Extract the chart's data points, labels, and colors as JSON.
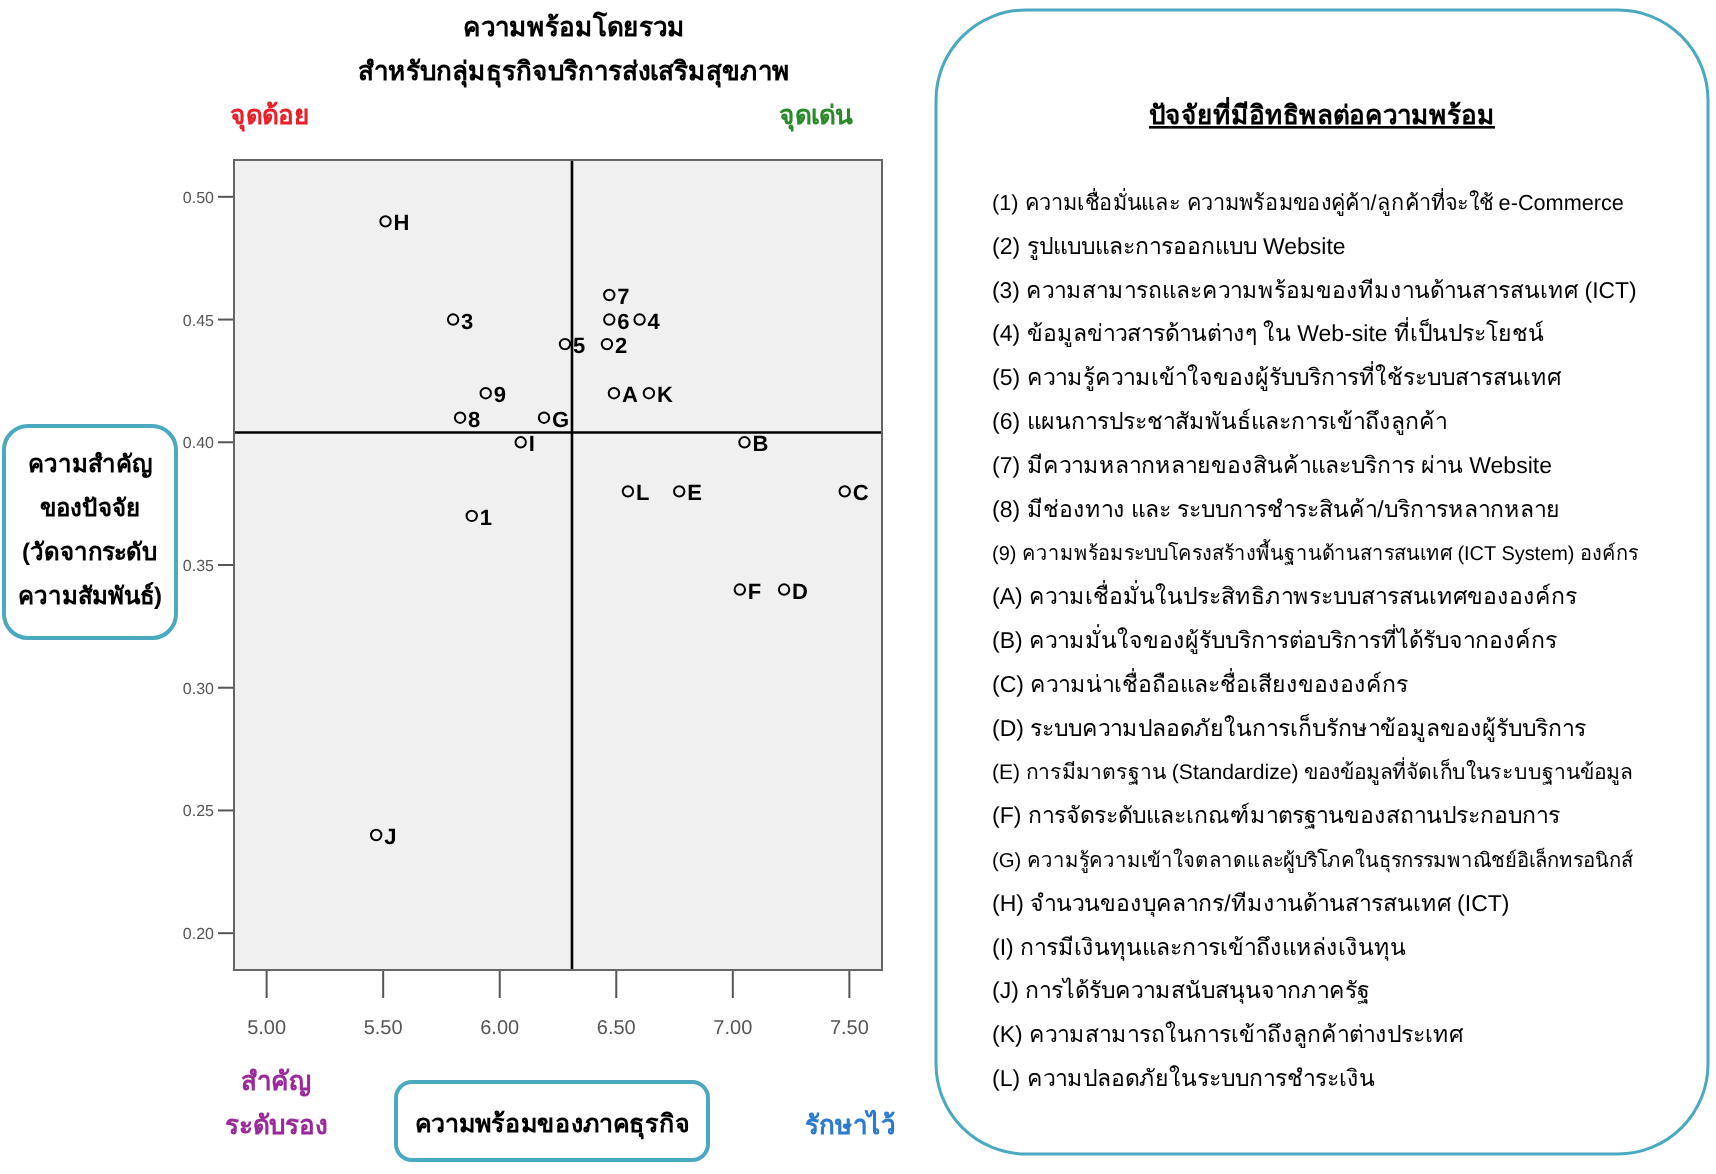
{
  "chart_data": {
    "type": "scatter",
    "title": "ความพร้อมโดยรวม",
    "subtitle": "สำหรับกลุ่มธุรกิจบริการส่งเสริมสุขภาพ",
    "xlabel": "ความพร้อมของภาคธุรกิจ",
    "ylabel": "ความสำคัญ\nของปัจจัย\n(วัดจากระดับ\nความสัมพันธ์)",
    "series": [
      {
        "name": "H",
        "color": "#000000",
        "x": [
          5.51
        ],
        "values": [
          0.49
        ]
      },
      {
        "name": "3",
        "color": "#000000",
        "x": [
          5.8
        ],
        "values": [
          0.45
        ]
      },
      {
        "name": "7",
        "color": "#000000",
        "x": [
          6.47
        ],
        "values": [
          0.46
        ]
      },
      {
        "name": "6",
        "color": "#000000",
        "x": [
          6.47
        ],
        "values": [
          0.45
        ]
      },
      {
        "name": "4",
        "color": "#000000",
        "x": [
          6.6
        ],
        "values": [
          0.45
        ]
      },
      {
        "name": "5",
        "color": "#000000",
        "x": [
          6.28
        ],
        "values": [
          0.44
        ]
      },
      {
        "name": "2",
        "color": "#000000",
        "x": [
          6.46
        ],
        "values": [
          0.44
        ]
      },
      {
        "name": "A",
        "color": "#000000",
        "x": [
          6.49
        ],
        "values": [
          0.42
        ]
      },
      {
        "name": "K",
        "color": "#000000",
        "x": [
          6.64
        ],
        "values": [
          0.42
        ]
      },
      {
        "name": "9",
        "color": "#000000",
        "x": [
          5.94
        ],
        "values": [
          0.42
        ]
      },
      {
        "name": "8",
        "color": "#000000",
        "x": [
          5.83
        ],
        "values": [
          0.41
        ]
      },
      {
        "name": "G",
        "color": "#000000",
        "x": [
          6.19
        ],
        "values": [
          0.41
        ]
      },
      {
        "name": "I",
        "color": "#000000",
        "x": [
          6.09
        ],
        "values": [
          0.4
        ]
      },
      {
        "name": "1",
        "color": "#000000",
        "x": [
          5.88
        ],
        "values": [
          0.37
        ]
      },
      {
        "name": "B",
        "color": "#000000",
        "x": [
          7.05
        ],
        "values": [
          0.4
        ]
      },
      {
        "name": "L",
        "color": "#000000",
        "x": [
          6.55
        ],
        "values": [
          0.38
        ]
      },
      {
        "name": "E",
        "color": "#000000",
        "x": [
          6.77
        ],
        "values": [
          0.38
        ]
      },
      {
        "name": "C",
        "color": "#000000",
        "x": [
          7.48
        ],
        "values": [
          0.38
        ]
      },
      {
        "name": "F",
        "color": "#000000",
        "x": [
          7.03
        ],
        "values": [
          0.34
        ]
      },
      {
        "name": "D",
        "color": "#000000",
        "x": [
          7.22
        ],
        "values": [
          0.34
        ]
      },
      {
        "name": "J",
        "color": "#000000",
        "x": [
          5.47
        ],
        "values": [
          0.24
        ]
      }
    ],
    "xlim": [
      4.86,
      7.64
    ],
    "ylim": [
      0.185,
      0.515
    ],
    "xticks": [
      {
        "value": 5,
        "label": "5.00"
      },
      {
        "value": 5.5,
        "label": "5.50"
      },
      {
        "value": 6,
        "label": "6.00"
      },
      {
        "value": 6.5,
        "label": "6.50"
      },
      {
        "value": 7,
        "label": "7.00"
      },
      {
        "value": 7.5,
        "label": "7.50"
      }
    ],
    "yticks": [
      {
        "value": 0.2,
        "label": "0.20"
      },
      {
        "value": 0.25,
        "label": "0.25"
      },
      {
        "value": 0.3,
        "label": "0.30"
      },
      {
        "value": 0.35,
        "label": "0.35"
      },
      {
        "value": 0.4,
        "label": "0.40"
      },
      {
        "value": 0.45,
        "label": "0.45"
      },
      {
        "value": 0.5,
        "label": "0.50"
      }
    ],
    "ref_lines": [
      {
        "axis": "x",
        "value": 6.31,
        "color": "#000000"
      },
      {
        "axis": "y",
        "value": 0.404,
        "color": "#000000"
      }
    ],
    "marker": "circle",
    "grid": false,
    "annotations": [
      "จุดด้อย",
      "จุดเด่น",
      "สำคัญ\nระดับรอง",
      "รักษาไว้",
      "ปัจจัยที่มีอิทธิพลต่อความพร้อม",
      "(1) ความเชื่อมั่นและ ความพร้อมของคู่ค้า/ลูกค้าที่จะใช้ e-Commerce",
      "(2) รูปแบบและการออกแบบ Website",
      "(3) ความสามารถและความพร้อมของทีมงานด้านสารสนเทศ (ICT)",
      "(4) ข้อมูลข่าวสารด้านต่างๆ ใน Web-site ที่เป็นประโยชน์",
      "(5) ความรู้ความเข้าใจของผู้รับบริการที่ใช้ระบบสารสนเทศ",
      "(6) แผนการประชาสัมพันธ์และการเข้าถึงลูกค้า",
      "(7) มีความหลากหลายของสินค้าและบริการ ผ่าน Website",
      "(8) มีช่องทาง และ ระบบการชำระสินค้า/บริการหลากหลาย",
      "(9) ความพร้อมระบบโครงสร้างพื้นฐานด้านสารสนเทศ (ICT System) องค์กร",
      "(A) ความเชื่อมั่นในประสิทธิภาพระบบสารสนเทศขององค์กร",
      "(B) ความมั่นใจของผู้รับบริการต่อบริการที่ได้รับจากองค์กร",
      "(C) ความน่าเชื่อถือและชื่อเสียงขององค์กร",
      "(D) ระบบความปลอดภัยในการเก็บรักษาข้อมูลของผู้รับบริการ",
      "(E) การมีมาตรฐาน (Standardize) ของข้อมูลที่จัดเก็บในระบบฐานข้อมูล",
      "(F) การจัดระดับและเกณฑ์มาตรฐานของสถานประกอบการ",
      "(G) ความรู้ความเข้าใจตลาดและผู้บริโภคในธุรกรรมพาณิชย์อิเล็กทรอนิกส์",
      "(H) จำนวนของบุคลากร/ทีมงานด้านสารสนเทศ (ICT)",
      "(I) การมีเงินทุนและการเข้าถึงแหล่งเงินทุน",
      "(J) การได้รับความสนับสนุนจากภาครัฐ",
      "(K) ความสามารถในการเข้าถึงลูกค้าต่างประเทศ",
      "(L) ความปลอดภัยในระบบการชำระเงิน"
    ]
  }
}
